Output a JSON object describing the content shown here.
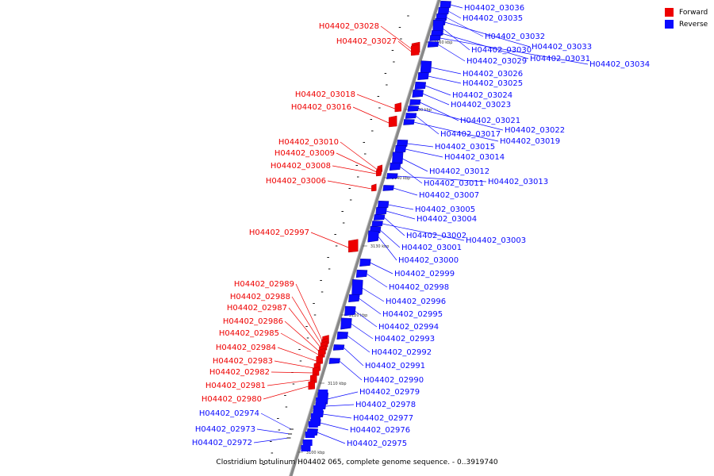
{
  "colors": {
    "forward": "#ee0000",
    "reverse": "#0a0aff",
    "backbone": "#888888"
  },
  "legend": {
    "forward_label": "Forward",
    "reverse_label": "Reverse"
  },
  "caption": "Clostridium botulinum H04402 065, complete genome sequence. - 0..3919740",
  "ticks": [
    "3100 kbp",
    "3110 kbp",
    "3120 kbp",
    "3130 kbp",
    "3140 kbp",
    "3150 kbp",
    "3160 kbp"
  ],
  "forward_genes": [
    "H04402_03028",
    "H04402_03027",
    "H04402_03018",
    "H04402_03016",
    "H04402_03010",
    "H04402_03009",
    "H04402_03008",
    "H04402_03006",
    "H04402_02997",
    "H04402_02989",
    "H04402_02988",
    "H04402_02987",
    "H04402_02986",
    "H04402_02985",
    "H04402_02984",
    "H04402_02983",
    "H04402_02982",
    "H04402_02981",
    "H04402_02980"
  ],
  "reverse_genes": [
    "H04402_03036",
    "H04402_03035",
    "H04402_03032",
    "H04402_03033",
    "H04402_03030",
    "H04402_03031",
    "H04402_03034",
    "H04402_03029",
    "H04402_03026",
    "H04402_03025",
    "H04402_03024",
    "H04402_03023",
    "H04402_03021",
    "H04402_03022",
    "H04402_03017",
    "H04402_03019",
    "H04402_03015",
    "H04402_03014",
    "H04402_03012",
    "H04402_03011",
    "H04402_03013",
    "H04402_03007",
    "H04402_03005",
    "H04402_03004",
    "H04402_03002",
    "H04402_03003",
    "H04402_03001",
    "H04402_03000",
    "H04402_02999",
    "H04402_02998",
    "H04402_02996",
    "H04402_02995",
    "H04402_02994",
    "H04402_02993",
    "H04402_02992",
    "H04402_02991",
    "H04402_02990",
    "H04402_02979",
    "H04402_02978",
    "H04402_02977",
    "H04402_02976",
    "H04402_02975",
    "H04402_02974",
    "H04402_02973",
    "H04402_02972"
  ]
}
